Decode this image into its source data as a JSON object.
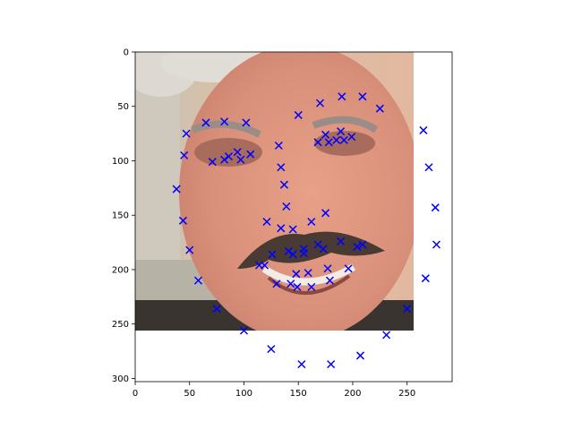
{
  "chart_data": {
    "type": "scatter",
    "title": "",
    "xlabel": "",
    "ylabel": "",
    "xlim": [
      0,
      290
    ],
    "ylim": [
      304,
      0
    ],
    "y_inverted": true,
    "grid": false,
    "legend": "none",
    "background_image": "face-photo",
    "image_extent": [
      0,
      256,
      256,
      0
    ],
    "xticks": [
      "0",
      "50",
      "100",
      "150",
      "200",
      "250"
    ],
    "yticks": [
      "0",
      "50",
      "100",
      "150",
      "200",
      "250",
      "300"
    ],
    "marker": "x",
    "marker_color": "#0000ff",
    "points": [
      [
        45,
        95
      ],
      [
        47,
        75
      ],
      [
        50,
        182
      ],
      [
        58,
        210
      ],
      [
        65,
        65
      ],
      [
        71,
        101
      ],
      [
        75,
        236
      ],
      [
        82,
        64
      ],
      [
        82,
        99
      ],
      [
        86,
        96
      ],
      [
        94,
        92
      ],
      [
        97,
        99
      ],
      [
        100,
        256
      ],
      [
        102,
        65
      ],
      [
        106,
        94
      ],
      [
        114,
        196
      ],
      [
        119,
        196
      ],
      [
        121,
        156
      ],
      [
        125,
        273
      ],
      [
        126,
        186
      ],
      [
        130,
        213
      ],
      [
        132,
        86
      ],
      [
        134,
        106
      ],
      [
        134,
        162
      ],
      [
        137,
        122
      ],
      [
        139,
        142
      ],
      [
        141,
        183
      ],
      [
        143,
        213
      ],
      [
        145,
        186
      ],
      [
        145,
        163
      ],
      [
        148,
        204
      ],
      [
        149,
        216
      ],
      [
        150,
        58
      ],
      [
        153,
        287
      ],
      [
        155,
        181
      ],
      [
        155,
        185
      ],
      [
        159,
        203
      ],
      [
        162,
        156
      ],
      [
        162,
        216
      ],
      [
        168,
        83
      ],
      [
        168,
        177
      ],
      [
        170,
        47
      ],
      [
        173,
        181
      ],
      [
        175,
        76
      ],
      [
        175,
        148
      ],
      [
        177,
        199
      ],
      [
        178,
        83
      ],
      [
        179,
        210
      ],
      [
        180,
        287
      ],
      [
        185,
        81
      ],
      [
        189,
        73
      ],
      [
        189,
        174
      ],
      [
        190,
        41
      ],
      [
        192,
        81
      ],
      [
        196,
        199
      ],
      [
        199,
        78
      ],
      [
        204,
        179
      ],
      [
        207,
        279
      ],
      [
        209,
        41
      ],
      [
        209,
        177
      ],
      [
        225,
        52
      ],
      [
        231,
        260
      ],
      [
        250,
        236
      ],
      [
        265,
        72
      ],
      [
        267,
        208
      ],
      [
        270,
        106
      ],
      [
        276,
        143
      ],
      [
        277,
        177
      ],
      [
        44,
        155
      ],
      [
        38,
        126
      ]
    ]
  }
}
